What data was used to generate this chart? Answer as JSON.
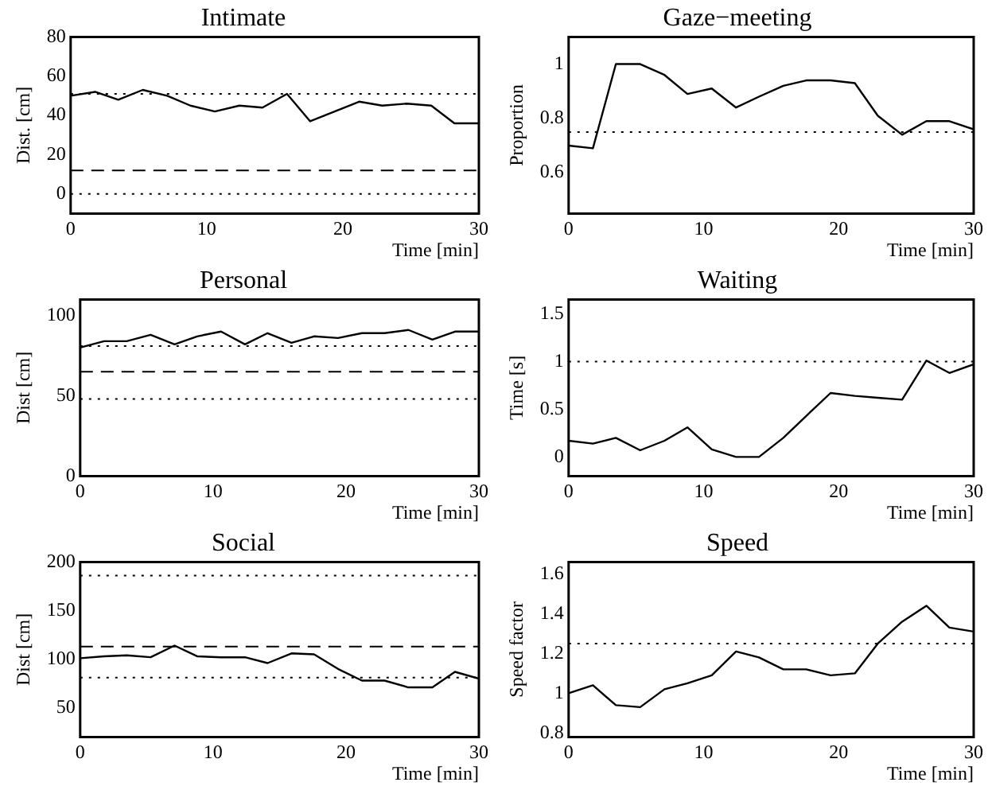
{
  "chart_data": [
    {
      "type": "line",
      "title": "Intimate",
      "xlabel": "Time [min]",
      "ylabel": "Dist. [cm]",
      "xlim": [
        0,
        30
      ],
      "xticks": [
        0,
        10,
        20,
        30
      ],
      "ylim": [
        -10,
        80
      ],
      "yticks": [
        0,
        20,
        40,
        60,
        80
      ],
      "grid": false,
      "legend": false,
      "marker": "none",
      "line_style": "solid",
      "x": [
        0,
        1.8,
        3.5,
        5.3,
        7.1,
        8.8,
        10.6,
        12.4,
        14.1,
        15.9,
        17.6,
        19.4,
        21.2,
        22.9,
        24.7,
        26.5,
        28.2,
        30
      ],
      "series": [
        {
          "color": "#000000",
          "values": [
            50,
            52,
            48,
            53,
            50,
            45,
            42,
            45,
            44,
            51,
            37,
            42,
            47,
            45,
            46,
            45,
            36,
            36
          ]
        }
      ],
      "ref_lines": [
        {
          "axis": "y",
          "value": 51,
          "line_style": "dotted",
          "color": "#000000"
        },
        {
          "axis": "y",
          "value": 12,
          "line_style": "dashed",
          "color": "#000000"
        },
        {
          "axis": "y",
          "value": 0,
          "line_style": "dotted",
          "color": "#000000"
        }
      ]
    },
    {
      "type": "line",
      "title": "Gaze−meeting",
      "xlabel": "Time [min]",
      "ylabel": "Proportion",
      "xlim": [
        0,
        30
      ],
      "xticks": [
        0,
        10,
        20,
        30
      ],
      "ylim": [
        0.45,
        1.1
      ],
      "yticks": [
        0.6,
        0.8,
        1
      ],
      "grid": false,
      "legend": false,
      "marker": "none",
      "line_style": "solid",
      "x": [
        0,
        1.8,
        3.5,
        5.3,
        7.1,
        8.8,
        10.6,
        12.4,
        14.1,
        15.9,
        17.6,
        19.4,
        21.2,
        22.9,
        24.7,
        26.5,
        28.2,
        30
      ],
      "series": [
        {
          "color": "#000000",
          "values": [
            0.7,
            0.69,
            1.0,
            1.0,
            0.96,
            0.89,
            0.91,
            0.84,
            0.88,
            0.92,
            0.94,
            0.94,
            0.93,
            0.81,
            0.74,
            0.79,
            0.79,
            0.76
          ]
        }
      ],
      "ref_lines": [
        {
          "axis": "y",
          "value": 0.75,
          "line_style": "dotted",
          "color": "#000000"
        }
      ]
    },
    {
      "type": "line",
      "title": "Personal",
      "xlabel": "Time [min]",
      "ylabel": "Dist [cm]",
      "xlim": [
        0,
        30
      ],
      "xticks": [
        0,
        10,
        20,
        30
      ],
      "ylim": [
        0,
        110
      ],
      "yticks": [
        0,
        50,
        100
      ],
      "grid": false,
      "legend": false,
      "marker": "none",
      "line_style": "solid",
      "x": [
        0,
        1.8,
        3.5,
        5.3,
        7.1,
        8.8,
        10.6,
        12.4,
        14.1,
        15.9,
        17.6,
        19.4,
        21.2,
        22.9,
        24.7,
        26.5,
        28.2,
        30
      ],
      "series": [
        {
          "color": "#000000",
          "values": [
            80,
            84,
            84,
            88,
            82,
            87,
            90,
            82,
            89,
            83,
            87,
            86,
            89,
            89,
            91,
            85,
            90,
            90
          ]
        }
      ],
      "ref_lines": [
        {
          "axis": "y",
          "value": 81,
          "line_style": "dotted",
          "color": "#000000"
        },
        {
          "axis": "y",
          "value": 65,
          "line_style": "dashed",
          "color": "#000000"
        },
        {
          "axis": "y",
          "value": 48,
          "line_style": "dotted",
          "color": "#000000"
        }
      ]
    },
    {
      "type": "line",
      "title": "Waiting",
      "xlabel": "Time [min]",
      "ylabel": "Time [s]",
      "xlim": [
        0,
        30
      ],
      "xticks": [
        0,
        10,
        20,
        30
      ],
      "ylim": [
        -0.2,
        1.65
      ],
      "yticks": [
        0,
        0.5,
        1,
        1.5
      ],
      "grid": false,
      "legend": false,
      "marker": "none",
      "line_style": "solid",
      "x": [
        0,
        1.8,
        3.5,
        5.3,
        7.1,
        8.8,
        10.6,
        12.4,
        14.1,
        15.9,
        17.6,
        19.4,
        21.2,
        22.9,
        24.7,
        26.5,
        28.2,
        30
      ],
      "series": [
        {
          "color": "#000000",
          "values": [
            0.17,
            0.14,
            0.2,
            0.07,
            0.17,
            0.31,
            0.08,
            0,
            0,
            0.2,
            0.43,
            0.67,
            0.64,
            0.62,
            0.6,
            1.01,
            0.88,
            0.97
          ]
        }
      ],
      "ref_lines": [
        {
          "axis": "y",
          "value": 1,
          "line_style": "dotted",
          "color": "#000000"
        }
      ]
    },
    {
      "type": "line",
      "title": "Social",
      "xlabel": "Time [min]",
      "ylabel": "Dist [cm]",
      "xlim": [
        0,
        30
      ],
      "xticks": [
        0,
        10,
        20,
        30
      ],
      "ylim": [
        20,
        200
      ],
      "yticks": [
        50,
        100,
        150,
        200
      ],
      "grid": false,
      "legend": false,
      "marker": "none",
      "line_style": "solid",
      "x": [
        0,
        1.8,
        3.5,
        5.3,
        7.1,
        8.8,
        10.6,
        12.4,
        14.1,
        15.9,
        17.6,
        19.4,
        21.2,
        22.9,
        24.7,
        26.5,
        28.2,
        30
      ],
      "series": [
        {
          "color": "#000000",
          "values": [
            101,
            103,
            104,
            102,
            114,
            103,
            102,
            102,
            96,
            106,
            105,
            90,
            78,
            78,
            71,
            71,
            87,
            80
          ]
        }
      ],
      "ref_lines": [
        {
          "axis": "y",
          "value": 186,
          "line_style": "dotted",
          "color": "#000000"
        },
        {
          "axis": "y",
          "value": 113,
          "line_style": "dashed",
          "color": "#000000"
        },
        {
          "axis": "y",
          "value": 81,
          "line_style": "dotted",
          "color": "#000000"
        }
      ]
    },
    {
      "type": "line",
      "title": "Speed",
      "xlabel": "Time [min]",
      "ylabel": "Speed factor",
      "xlim": [
        0,
        30
      ],
      "xticks": [
        0,
        10,
        20,
        30
      ],
      "ylim": [
        0.78,
        1.66
      ],
      "yticks": [
        0.8,
        1,
        1.2,
        1.4,
        1.6
      ],
      "grid": false,
      "legend": false,
      "marker": "none",
      "line_style": "solid",
      "x": [
        0,
        1.8,
        3.5,
        5.3,
        7.1,
        8.8,
        10.6,
        12.4,
        14.1,
        15.9,
        17.6,
        19.4,
        21.2,
        22.9,
        24.7,
        26.5,
        28.2,
        30
      ],
      "series": [
        {
          "color": "#000000",
          "values": [
            1.0,
            1.04,
            0.94,
            0.93,
            1.02,
            1.05,
            1.09,
            1.21,
            1.18,
            1.12,
            1.12,
            1.09,
            1.1,
            1.25,
            1.36,
            1.44,
            1.33,
            1.31
          ]
        }
      ],
      "ref_lines": [
        {
          "axis": "y",
          "value": 1.25,
          "line_style": "dotted",
          "color": "#000000"
        }
      ]
    }
  ]
}
